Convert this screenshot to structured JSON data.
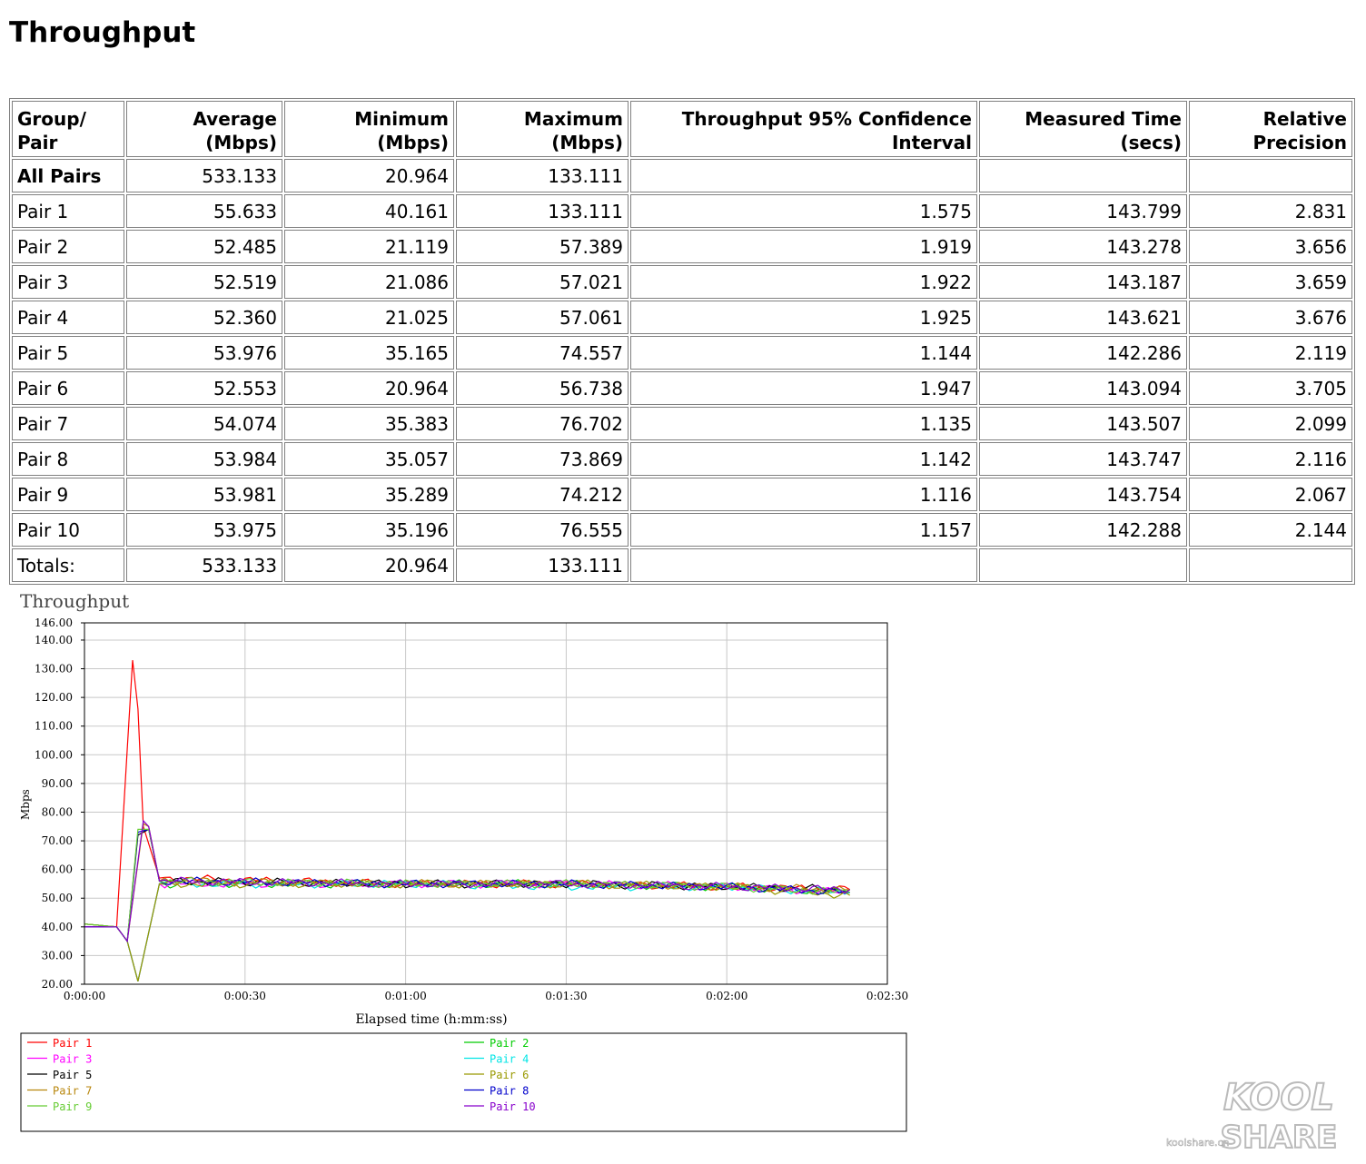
{
  "page": {
    "title": "Throughput"
  },
  "table": {
    "headers": [
      "Group/ Pair",
      "Average (Mbps)",
      "Minimum (Mbps)",
      "Maximum (Mbps)",
      "Throughput 95% Confidence Interval",
      "Measured Time (secs)",
      "Relative Precision"
    ],
    "rows": [
      {
        "label": "All Pairs",
        "avg": "533.133",
        "min": "20.964",
        "max": "133.111",
        "ci": "",
        "time": "",
        "rp": ""
      },
      {
        "label": "Pair 1",
        "avg": "55.633",
        "min": "40.161",
        "max": "133.111",
        "ci": "1.575",
        "time": "143.799",
        "rp": "2.831"
      },
      {
        "label": "Pair 2",
        "avg": "52.485",
        "min": "21.119",
        "max": "57.389",
        "ci": "1.919",
        "time": "143.278",
        "rp": "3.656"
      },
      {
        "label": "Pair 3",
        "avg": "52.519",
        "min": "21.086",
        "max": "57.021",
        "ci": "1.922",
        "time": "143.187",
        "rp": "3.659"
      },
      {
        "label": "Pair 4",
        "avg": "52.360",
        "min": "21.025",
        "max": "57.061",
        "ci": "1.925",
        "time": "143.621",
        "rp": "3.676"
      },
      {
        "label": "Pair 5",
        "avg": "53.976",
        "min": "35.165",
        "max": "74.557",
        "ci": "1.144",
        "time": "142.286",
        "rp": "2.119"
      },
      {
        "label": "Pair 6",
        "avg": "52.553",
        "min": "20.964",
        "max": "56.738",
        "ci": "1.947",
        "time": "143.094",
        "rp": "3.705"
      },
      {
        "label": "Pair 7",
        "avg": "54.074",
        "min": "35.383",
        "max": "76.702",
        "ci": "1.135",
        "time": "143.507",
        "rp": "2.099"
      },
      {
        "label": "Pair 8",
        "avg": "53.984",
        "min": "35.057",
        "max": "73.869",
        "ci": "1.142",
        "time": "143.747",
        "rp": "2.116"
      },
      {
        "label": "Pair 9",
        "avg": "53.981",
        "min": "35.289",
        "max": "74.212",
        "ci": "1.116",
        "time": "143.754",
        "rp": "2.067"
      },
      {
        "label": "Pair 10",
        "avg": "53.975",
        "min": "35.196",
        "max": "76.555",
        "ci": "1.157",
        "time": "142.288",
        "rp": "2.144"
      },
      {
        "label": "Totals:",
        "avg": "533.133",
        "min": "20.964",
        "max": "133.111",
        "ci": "",
        "time": "",
        "rp": ""
      }
    ]
  },
  "chart_data": {
    "type": "line",
    "title": "Throughput",
    "xlabel": "Elapsed time (h:mm:ss)",
    "ylabel": "Mbps",
    "xlim": [
      0,
      150
    ],
    "ylim": [
      20,
      146
    ],
    "x_ticks": [
      {
        "v": 0,
        "label": "0:00:00"
      },
      {
        "v": 30,
        "label": "0:00:30"
      },
      {
        "v": 60,
        "label": "0:01:00"
      },
      {
        "v": 90,
        "label": "0:01:30"
      },
      {
        "v": 120,
        "label": "0:02:00"
      },
      {
        "v": 150,
        "label": "0:02:30"
      }
    ],
    "y_ticks": [
      "20.00",
      "30.00",
      "40.00",
      "50.00",
      "60.00",
      "70.00",
      "80.00",
      "90.00",
      "100.00",
      "110.00",
      "120.00",
      "130.00",
      "140.00",
      "146.00"
    ],
    "grid": true,
    "legend_position": "bottom",
    "series": [
      {
        "name": "Pair 1",
        "color": "#ff0000",
        "points": [
          [
            0,
            41
          ],
          [
            6,
            40
          ],
          [
            9,
            133
          ],
          [
            10,
            116
          ],
          [
            11,
            75
          ],
          [
            14,
            57
          ],
          [
            60,
            55
          ],
          [
            90,
            55
          ],
          [
            120,
            54
          ],
          [
            143,
            53
          ]
        ]
      },
      {
        "name": "Pair 2",
        "color": "#00cc00",
        "points": [
          [
            0,
            41
          ],
          [
            6,
            40
          ],
          [
            8,
            35
          ],
          [
            10,
            21
          ],
          [
            14,
            55
          ],
          [
            60,
            55
          ],
          [
            90,
            55
          ],
          [
            120,
            54
          ],
          [
            143,
            52
          ]
        ]
      },
      {
        "name": "Pair 3",
        "color": "#ff00ff",
        "points": [
          [
            0,
            41
          ],
          [
            6,
            40
          ],
          [
            8,
            35
          ],
          [
            10,
            21
          ],
          [
            14,
            55
          ],
          [
            60,
            55
          ],
          [
            90,
            55
          ],
          [
            120,
            54
          ],
          [
            143,
            52
          ]
        ]
      },
      {
        "name": "Pair 4",
        "color": "#00e5e5",
        "points": [
          [
            0,
            41
          ],
          [
            6,
            40
          ],
          [
            8,
            35
          ],
          [
            10,
            21
          ],
          [
            14,
            55
          ],
          [
            60,
            55
          ],
          [
            90,
            54
          ],
          [
            120,
            54
          ],
          [
            143,
            52
          ]
        ]
      },
      {
        "name": "Pair 5",
        "color": "#000000",
        "points": [
          [
            0,
            40
          ],
          [
            6,
            40
          ],
          [
            8,
            35
          ],
          [
            10,
            72
          ],
          [
            12,
            74
          ],
          [
            14,
            56
          ],
          [
            60,
            55
          ],
          [
            90,
            55
          ],
          [
            120,
            54
          ],
          [
            143,
            53
          ]
        ]
      },
      {
        "name": "Pair 6",
        "color": "#999900",
        "points": [
          [
            0,
            41
          ],
          [
            6,
            40
          ],
          [
            8,
            35
          ],
          [
            10,
            21
          ],
          [
            14,
            55
          ],
          [
            60,
            55
          ],
          [
            90,
            55
          ],
          [
            120,
            54
          ],
          [
            143,
            51
          ]
        ]
      },
      {
        "name": "Pair 7",
        "color": "#b8860b",
        "points": [
          [
            0,
            41
          ],
          [
            6,
            40
          ],
          [
            8,
            35
          ],
          [
            11,
            76
          ],
          [
            12,
            75
          ],
          [
            14,
            56
          ],
          [
            60,
            55
          ],
          [
            90,
            55
          ],
          [
            120,
            54
          ],
          [
            143,
            53
          ]
        ]
      },
      {
        "name": "Pair 8",
        "color": "#0000cc",
        "points": [
          [
            0,
            40
          ],
          [
            6,
            40
          ],
          [
            8,
            35
          ],
          [
            10,
            73
          ],
          [
            12,
            74
          ],
          [
            14,
            56
          ],
          [
            60,
            55
          ],
          [
            90,
            55
          ],
          [
            120,
            54
          ],
          [
            143,
            52
          ]
        ]
      },
      {
        "name": "Pair 9",
        "color": "#66cc33",
        "points": [
          [
            0,
            41
          ],
          [
            6,
            40
          ],
          [
            8,
            35
          ],
          [
            10,
            74
          ],
          [
            12,
            74
          ],
          [
            14,
            56
          ],
          [
            60,
            55
          ],
          [
            90,
            55
          ],
          [
            120,
            54
          ],
          [
            143,
            52
          ]
        ]
      },
      {
        "name": "Pair 10",
        "color": "#8800cc",
        "points": [
          [
            0,
            40
          ],
          [
            6,
            40
          ],
          [
            8,
            35
          ],
          [
            11,
            77
          ],
          [
            12,
            75
          ],
          [
            14,
            56
          ],
          [
            60,
            55
          ],
          [
            90,
            55
          ],
          [
            120,
            54
          ],
          [
            143,
            53
          ]
        ]
      }
    ]
  },
  "watermark": {
    "site": "koolshare.cn",
    "line1": "KOOL",
    "line2": "SHARE"
  }
}
